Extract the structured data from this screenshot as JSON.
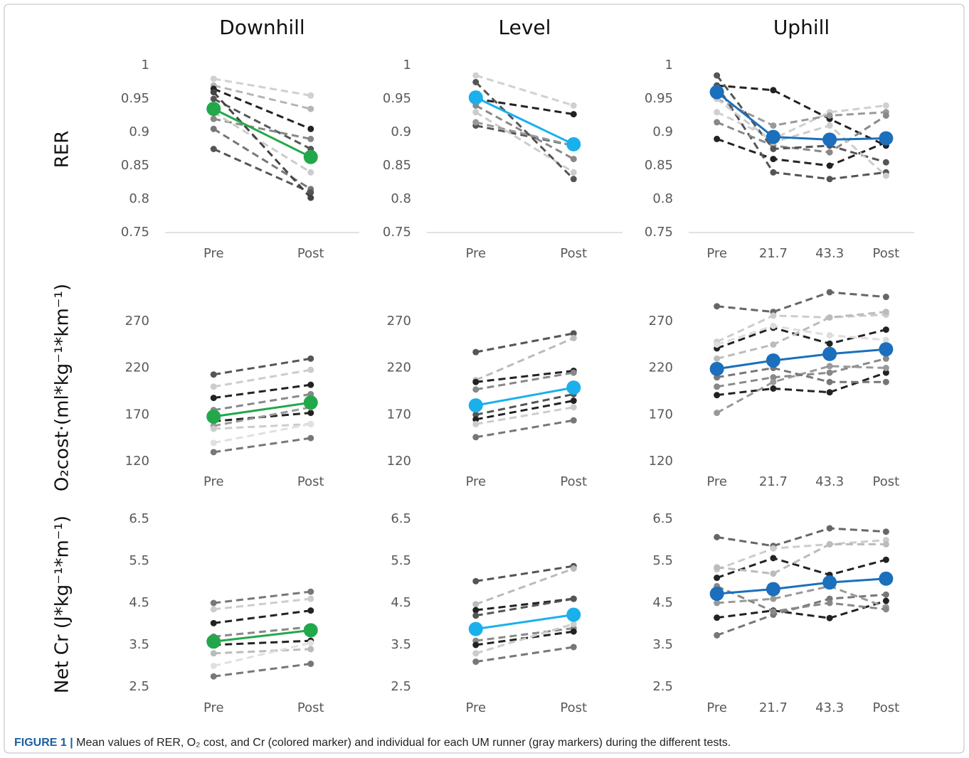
{
  "chart_data": [
    {
      "type": "line",
      "title": "Downhill",
      "ylabel": "RER",
      "categories": [
        "Pre",
        "Post"
      ],
      "ylim": [
        0.75,
        1
      ],
      "yticks": [
        0.75,
        0.8,
        0.85,
        0.9,
        0.95,
        1
      ],
      "x_axis_line": true,
      "series": [
        {
          "color": "#d0d0d0",
          "dashed": true,
          "values": [
            0.98,
            0.955
          ]
        },
        {
          "color": "#b5b5b5",
          "dashed": true,
          "values": [
            0.97,
            0.935
          ]
        },
        {
          "color": "#222222",
          "dashed": true,
          "values": [
            0.965,
            0.905
          ]
        },
        {
          "color": "#555555",
          "dashed": true,
          "values": [
            0.95,
            0.875
          ]
        },
        {
          "color": "#888888",
          "dashed": true,
          "values": [
            0.92,
            0.89
          ]
        },
        {
          "color": "#777777",
          "dashed": true,
          "values": [
            0.905,
            0.815
          ]
        },
        {
          "color": "#555555",
          "dashed": true,
          "values": [
            0.875,
            0.81
          ]
        },
        {
          "color": "#cccccc",
          "dashed": true,
          "values": [
            0.93,
            0.84
          ]
        },
        {
          "color": "#444444",
          "dashed": true,
          "values": [
            0.96,
            0.802
          ]
        },
        {
          "color": "#22a84a",
          "values": [
            0.935,
            0.863
          ]
        }
      ]
    },
    {
      "type": "line",
      "title": "Level",
      "categories": [
        "Pre",
        "Post"
      ],
      "ylim": [
        0.75,
        1
      ],
      "yticks": [
        0.75,
        0.8,
        0.85,
        0.9,
        0.95,
        1
      ],
      "x_axis_line": true,
      "series": [
        {
          "color": "#d0d0d0",
          "dashed": true,
          "values": [
            0.985,
            0.94
          ]
        },
        {
          "color": "#222222",
          "dashed": true,
          "values": [
            0.95,
            0.927
          ]
        },
        {
          "color": "#555555",
          "dashed": true,
          "values": [
            0.91,
            0.88
          ]
        },
        {
          "color": "#888888",
          "dashed": true,
          "values": [
            0.94,
            0.86
          ]
        },
        {
          "color": "#cccccc",
          "dashed": true,
          "values": [
            0.93,
            0.84
          ]
        },
        {
          "color": "#999999",
          "dashed": true,
          "values": [
            0.915,
            0.88
          ]
        },
        {
          "color": "#555555",
          "dashed": true,
          "values": [
            0.975,
            0.83
          ]
        },
        {
          "color": "#1ab0ec",
          "values": [
            0.952,
            0.882
          ]
        }
      ]
    },
    {
      "type": "line",
      "title": "Uphill",
      "categories": [
        "Pre",
        "21.7",
        "43.3",
        "Post"
      ],
      "ylim": [
        0.75,
        1
      ],
      "yticks": [
        0.75,
        0.8,
        0.85,
        0.9,
        0.95,
        1
      ],
      "x_axis_line": true,
      "series": [
        {
          "color": "#222222",
          "dashed": true,
          "values": [
            0.97,
            0.963,
            0.92,
            0.88
          ]
        },
        {
          "color": "#d0d0d0",
          "dashed": true,
          "values": [
            0.93,
            0.89,
            0.93,
            0.94
          ]
        },
        {
          "color": "#999999",
          "dashed": true,
          "values": [
            0.95,
            0.91,
            0.925,
            0.93
          ]
        },
        {
          "color": "#222222",
          "dashed": true,
          "values": [
            0.89,
            0.86,
            0.85,
            0.885
          ]
        },
        {
          "color": "#555555",
          "dashed": true,
          "values": [
            0.97,
            0.84,
            0.83,
            0.84
          ]
        },
        {
          "color": "#888888",
          "dashed": true,
          "values": [
            0.915,
            0.88,
            0.87,
            0.925
          ]
        },
        {
          "color": "#555555",
          "dashed": true,
          "values": [
            0.985,
            0.875,
            0.88,
            0.855
          ]
        },
        {
          "color": "#cccccc",
          "dashed": true,
          "values": [
            0.95,
            0.885,
            0.91,
            0.835
          ]
        },
        {
          "color": "#1b6fbc",
          "values": [
            0.96,
            0.893,
            0.889,
            0.891
          ]
        }
      ]
    },
    {
      "type": "line",
      "ylabel": "O₂cost·(ml*kg⁻¹*km⁻¹)",
      "categories": [
        "Pre",
        "Post"
      ],
      "ylim": [
        120,
        320
      ],
      "yticks": [
        120,
        170,
        220,
        270
      ],
      "series": [
        {
          "color": "#555555",
          "dashed": true,
          "values": [
            213,
            230
          ]
        },
        {
          "color": "#cccccc",
          "dashed": true,
          "values": [
            200,
            218
          ]
        },
        {
          "color": "#222222",
          "dashed": true,
          "values": [
            188,
            202
          ]
        },
        {
          "color": "#888888",
          "dashed": true,
          "values": [
            175,
            192
          ]
        },
        {
          "color": "#222222",
          "dashed": true,
          "values": [
            163,
            172
          ]
        },
        {
          "color": "#999999",
          "dashed": true,
          "values": [
            158,
            178
          ]
        },
        {
          "color": "#cccccc",
          "dashed": true,
          "values": [
            155,
            160
          ]
        },
        {
          "color": "#e0e0e0",
          "dashed": true,
          "values": [
            140,
            160
          ]
        },
        {
          "color": "#777777",
          "dashed": true,
          "values": [
            130,
            145
          ]
        },
        {
          "color": "#22a84a",
          "values": [
            168,
            183
          ]
        }
      ]
    },
    {
      "type": "line",
      "categories": [
        "Pre",
        "Post"
      ],
      "ylim": [
        120,
        320
      ],
      "yticks": [
        120,
        170,
        220,
        270
      ],
      "series": [
        {
          "color": "#555555",
          "dashed": true,
          "values": [
            237,
            257
          ]
        },
        {
          "color": "#bbbbbb",
          "dashed": true,
          "values": [
            207,
            252
          ]
        },
        {
          "color": "#222222",
          "dashed": true,
          "values": [
            205,
            217
          ]
        },
        {
          "color": "#888888",
          "dashed": true,
          "values": [
            197,
            215
          ]
        },
        {
          "color": "#555555",
          "dashed": true,
          "values": [
            170,
            192
          ]
        },
        {
          "color": "#222222",
          "dashed": true,
          "values": [
            165,
            185
          ]
        },
        {
          "color": "#cccccc",
          "dashed": true,
          "values": [
            160,
            178
          ]
        },
        {
          "color": "#777777",
          "dashed": true,
          "values": [
            146,
            164
          ]
        },
        {
          "color": "#1ab0ec",
          "values": [
            180,
            199
          ]
        }
      ]
    },
    {
      "type": "line",
      "categories": [
        "Pre",
        "21.7",
        "43.3",
        "Post"
      ],
      "ylim": [
        120,
        320
      ],
      "yticks": [
        120,
        170,
        220,
        270
      ],
      "series": [
        {
          "color": "#666666",
          "dashed": true,
          "values": [
            286,
            280,
            301,
            296
          ]
        },
        {
          "color": "#cccccc",
          "dashed": true,
          "values": [
            248,
            276,
            274,
            277
          ]
        },
        {
          "color": "#222222",
          "dashed": true,
          "values": [
            241,
            263,
            246,
            261
          ]
        },
        {
          "color": "#bbbbbb",
          "dashed": true,
          "values": [
            230,
            245,
            274,
            280
          ]
        },
        {
          "color": "#888888",
          "dashed": true,
          "values": [
            200,
            210,
            215,
            230
          ]
        },
        {
          "color": "#222222",
          "dashed": true,
          "values": [
            191,
            198,
            194,
            215
          ]
        },
        {
          "color": "#999999",
          "dashed": true,
          "values": [
            172,
            205,
            222,
            220
          ]
        },
        {
          "color": "#777777",
          "dashed": true,
          "values": [
            210,
            220,
            205,
            205
          ]
        },
        {
          "color": "#dddddd",
          "dashed": true,
          "values": [
            245,
            265,
            255,
            250
          ]
        },
        {
          "color": "#1b6fbc",
          "values": [
            219,
            228,
            235,
            240
          ]
        }
      ]
    },
    {
      "type": "line",
      "ylabel": "Net Cr (J*kg⁻¹*m⁻¹)",
      "categories": [
        "Pre",
        "Post"
      ],
      "ylim": [
        2.5,
        6.5
      ],
      "yticks": [
        2.5,
        3.5,
        4.5,
        5.5,
        6.5
      ],
      "series": [
        {
          "color": "#777777",
          "dashed": true,
          "values": [
            4.5,
            4.77
          ]
        },
        {
          "color": "#cccccc",
          "dashed": true,
          "values": [
            4.35,
            4.6
          ]
        },
        {
          "color": "#222222",
          "dashed": true,
          "values": [
            4.02,
            4.32
          ]
        },
        {
          "color": "#888888",
          "dashed": true,
          "values": [
            3.7,
            3.93
          ]
        },
        {
          "color": "#222222",
          "dashed": true,
          "values": [
            3.5,
            3.6
          ]
        },
        {
          "color": "#bbbbbb",
          "dashed": true,
          "values": [
            3.3,
            3.4
          ]
        },
        {
          "color": "#e0e0e0",
          "dashed": true,
          "values": [
            3.0,
            3.55
          ]
        },
        {
          "color": "#777777",
          "dashed": true,
          "values": [
            2.75,
            3.05
          ]
        },
        {
          "color": "#22a84a",
          "values": [
            3.58,
            3.85
          ]
        }
      ]
    },
    {
      "type": "line",
      "categories": [
        "Pre",
        "Post"
      ],
      "ylim": [
        2.5,
        6.5
      ],
      "yticks": [
        2.5,
        3.5,
        4.5,
        5.5,
        6.5
      ],
      "series": [
        {
          "color": "#555555",
          "dashed": true,
          "values": [
            5.02,
            5.38
          ]
        },
        {
          "color": "#bbbbbb",
          "dashed": true,
          "values": [
            4.47,
            5.32
          ]
        },
        {
          "color": "#222222",
          "dashed": true,
          "values": [
            4.33,
            4.6
          ]
        },
        {
          "color": "#555555",
          "dashed": true,
          "values": [
            4.2,
            4.6
          ]
        },
        {
          "color": "#888888",
          "dashed": true,
          "values": [
            3.6,
            3.9
          ]
        },
        {
          "color": "#222222",
          "dashed": true,
          "values": [
            3.5,
            3.82
          ]
        },
        {
          "color": "#cccccc",
          "dashed": true,
          "values": [
            3.3,
            4.0
          ]
        },
        {
          "color": "#777777",
          "dashed": true,
          "values": [
            3.1,
            3.45
          ]
        },
        {
          "color": "#1ab0ec",
          "values": [
            3.88,
            4.22
          ]
        }
      ]
    },
    {
      "type": "line",
      "categories": [
        "Pre",
        "21.7",
        "43.3",
        "Post"
      ],
      "ylim": [
        2.5,
        6.5
      ],
      "yticks": [
        2.5,
        3.5,
        4.5,
        5.5,
        6.5
      ],
      "series": [
        {
          "color": "#666666",
          "dashed": true,
          "values": [
            6.07,
            5.86,
            6.28,
            6.2
          ]
        },
        {
          "color": "#cccccc",
          "dashed": true,
          "values": [
            5.3,
            5.8,
            5.9,
            6.0
          ]
        },
        {
          "color": "#222222",
          "dashed": true,
          "values": [
            5.1,
            5.57,
            5.17,
            5.53
          ]
        },
        {
          "color": "#bbbbbb",
          "dashed": true,
          "values": [
            5.35,
            5.2,
            5.9,
            5.9
          ]
        },
        {
          "color": "#222222",
          "dashed": true,
          "values": [
            4.15,
            4.32,
            4.14,
            4.55
          ]
        },
        {
          "color": "#777777",
          "dashed": true,
          "values": [
            3.73,
            4.22,
            4.6,
            4.7
          ]
        },
        {
          "color": "#999999",
          "dashed": true,
          "values": [
            4.5,
            4.6,
            4.9,
            4.4
          ]
        },
        {
          "color": "#888888",
          "dashed": true,
          "values": [
            4.9,
            4.3,
            4.5,
            4.35
          ]
        },
        {
          "color": "#1b6fbc",
          "values": [
            4.72,
            4.83,
            4.99,
            5.08
          ]
        }
      ]
    }
  ],
  "caption": {
    "label": "FIGURE 1 |",
    "text": "Mean values of RER, O₂ cost, and Cr (colored marker) and individual for each UM runner (gray markers) during the different tests."
  }
}
